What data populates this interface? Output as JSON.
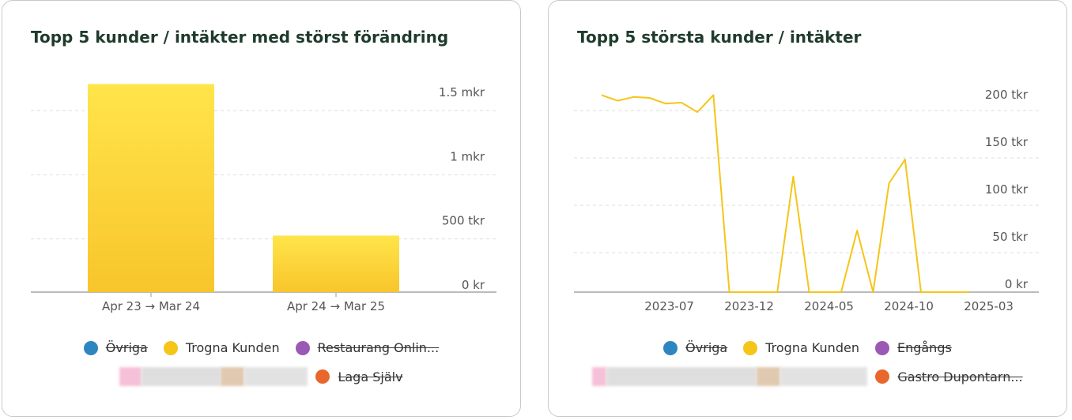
{
  "cards": [
    {
      "title": "Topp 5 kunder / intäkter med störst förändring",
      "legend": {
        "row1": [
          {
            "label": "Övriga",
            "color": "#2e86c1",
            "active": false
          },
          {
            "label": "Trogna Kunden",
            "color": "#f5c518",
            "active": true
          },
          {
            "label": "Restaurang Onlin...",
            "color": "#9b59b6",
            "active": false
          }
        ],
        "row2": [
          {
            "label": "Laga Själv",
            "color": "#e8672b",
            "active": false
          }
        ]
      }
    },
    {
      "title": "Topp 5 största kunder / intäkter",
      "legend": {
        "row1": [
          {
            "label": "Övriga",
            "color": "#2e86c1",
            "active": false
          },
          {
            "label": "Trogna Kunden",
            "color": "#f5c518",
            "active": true
          },
          {
            "label": "Engångs",
            "color": "#9b59b6",
            "active": false
          }
        ],
        "row2": [
          {
            "label": "Gastro Dupontarn...",
            "color": "#e8672b",
            "active": false
          }
        ]
      }
    }
  ],
  "chart_data": [
    {
      "type": "bar",
      "categories": [
        "Apr 23 → Mar 24",
        "Apr 24 → Mar 25"
      ],
      "series": [
        {
          "name": "Trogna Kunden",
          "values": [
            1620000,
            440000
          ],
          "color": "#fbd23a"
        }
      ],
      "yticks": [
        0,
        500000,
        1000000,
        1500000
      ],
      "ytick_labels": [
        "0 kr",
        "500 tkr",
        "1 mkr",
        "1.5 mkr"
      ],
      "ylim": [
        0,
        1650000
      ],
      "grid": true
    },
    {
      "type": "line",
      "x": [
        "2023-04",
        "2023-05",
        "2023-06",
        "2023-07",
        "2023-08",
        "2023-09",
        "2023-10",
        "2023-11",
        "2023-12",
        "2024-01",
        "2024-02",
        "2024-03",
        "2024-04",
        "2024-05",
        "2024-06",
        "2024-07",
        "2024-08",
        "2024-09",
        "2024-10",
        "2024-11",
        "2024-12",
        "2025-01",
        "2025-02",
        "2025-03"
      ],
      "series": [
        {
          "name": "Trogna Kunden",
          "color": "#f5c518",
          "values": [
            208,
            202,
            206,
            205,
            199,
            200,
            190,
            208,
            0,
            0,
            0,
            0,
            122,
            0,
            0,
            0,
            65,
            0,
            115,
            140,
            0,
            0,
            0,
            0
          ]
        }
      ],
      "xtick_labels": [
        "2023-07",
        "2023-12",
        "2024-05",
        "2024-10",
        "2025-03"
      ],
      "xtick_index": [
        3,
        8,
        13,
        18,
        23
      ],
      "yticks": [
        0,
        50,
        100,
        150,
        200
      ],
      "ytick_labels": [
        "0 kr",
        "50 tkr",
        "100 tkr",
        "150 tkr",
        "200 tkr"
      ],
      "ylim": [
        0,
        210
      ],
      "grid": true
    }
  ]
}
